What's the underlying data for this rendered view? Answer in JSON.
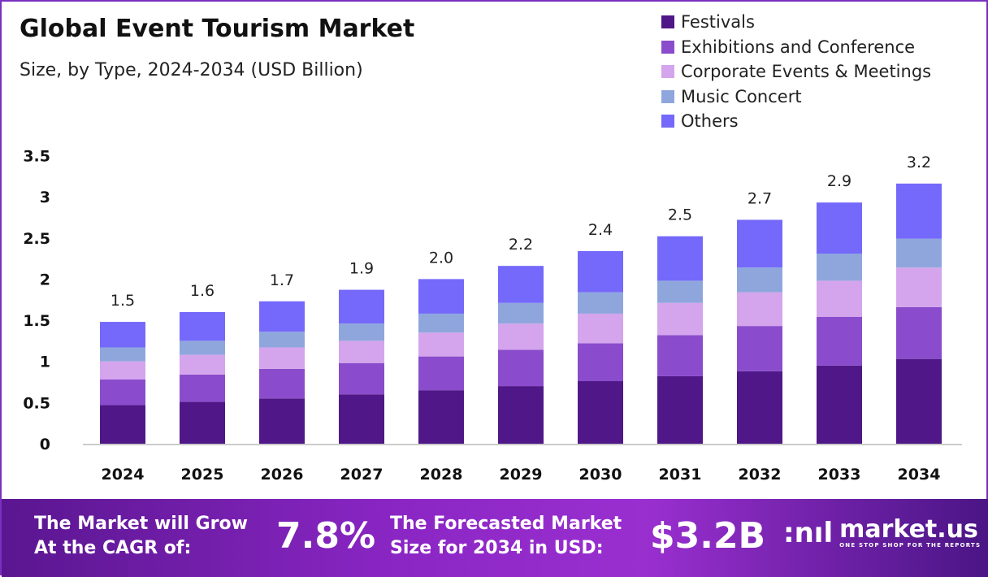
{
  "chart_data": {
    "type": "bar",
    "stacked": true,
    "title": "Global Event Tourism Market",
    "subtitle": "Size, by Type, 2024-2034 (USD Billion)",
    "categories": [
      "2024",
      "2025",
      "2026",
      "2027",
      "2028",
      "2029",
      "2030",
      "2031",
      "2032",
      "2033",
      "2034"
    ],
    "series": [
      {
        "name": "Festivals",
        "color": "#4f1787",
        "values": [
          0.47,
          0.51,
          0.55,
          0.6,
          0.65,
          0.7,
          0.76,
          0.82,
          0.88,
          0.95,
          1.03
        ]
      },
      {
        "name": "Exhibitions and Conference",
        "color": "#8a4ccc",
        "values": [
          0.31,
          0.33,
          0.36,
          0.38,
          0.41,
          0.44,
          0.46,
          0.5,
          0.55,
          0.59,
          0.63
        ]
      },
      {
        "name": "Corporate Events & Meetings",
        "color": "#d4a5ec",
        "values": [
          0.22,
          0.24,
          0.26,
          0.27,
          0.29,
          0.32,
          0.36,
          0.39,
          0.41,
          0.44,
          0.48
        ]
      },
      {
        "name": "Music Concert",
        "color": "#8fa6dd",
        "values": [
          0.17,
          0.17,
          0.19,
          0.21,
          0.23,
          0.25,
          0.26,
          0.27,
          0.3,
          0.33,
          0.35
        ]
      },
      {
        "name": "Others",
        "color": "#7469fa",
        "values": [
          0.31,
          0.35,
          0.37,
          0.41,
          0.42,
          0.45,
          0.5,
          0.54,
          0.58,
          0.62,
          0.67
        ]
      }
    ],
    "totals": [
      "1.5",
      "1.6",
      "1.7",
      "1.9",
      "2.0",
      "2.2",
      "2.4",
      "2.5",
      "2.7",
      "2.9",
      "3.2"
    ],
    "yticks": [
      "0",
      "0.5",
      "1",
      "1.5",
      "2",
      "2.5",
      "3",
      "3.5"
    ],
    "ylim": [
      0,
      3.5
    ],
    "grid": false,
    "legend_position": "top-right"
  },
  "footer": {
    "cagr_label_1": "The Market will Grow",
    "cagr_label_2": "At the CAGR of:",
    "cagr_value": "7.8%",
    "forecast_label_1": "The Forecasted Market",
    "forecast_label_2": "Size for 2034 in USD:",
    "forecast_value": "$3.2B",
    "logo_text": "market.us",
    "logo_tagline": "ONE STOP SHOP FOR THE REPORTS"
  }
}
